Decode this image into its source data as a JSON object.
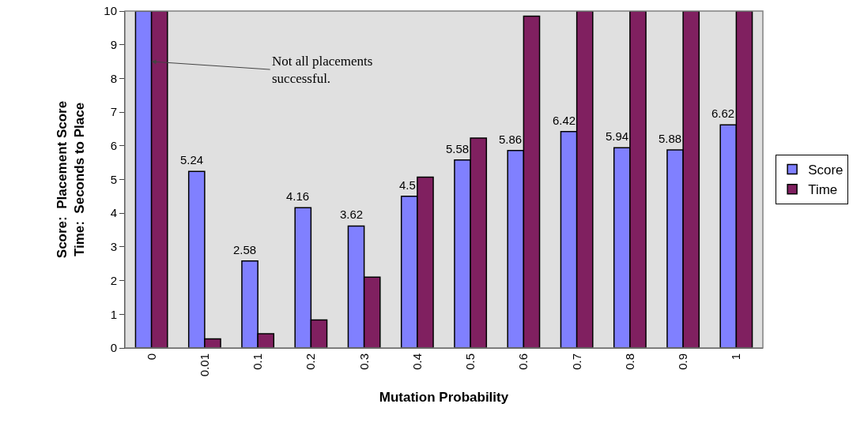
{
  "chart_data": {
    "type": "bar",
    "xlabel": "Mutation Probability",
    "ylabel": "Score:  Placement Score\nTime:  Seconds to Place",
    "categories": [
      "0",
      "0.01",
      "0.1",
      "0.2",
      "0.3",
      "0.4",
      "0.5",
      "0.6",
      "0.7",
      "0.8",
      "0.9",
      "1"
    ],
    "series": [
      {
        "name": "Score",
        "color": "#8080ff",
        "values": [
          10,
          5.24,
          2.58,
          4.16,
          3.62,
          4.5,
          5.58,
          5.86,
          6.42,
          5.94,
          5.88,
          6.62
        ],
        "value_labels": [
          null,
          "5.24",
          "2.58",
          "4.16",
          "3.62",
          "4.5",
          "5.58",
          "5.86",
          "6.42",
          "5.94",
          "5.88",
          "6.62"
        ]
      },
      {
        "name": "Time",
        "color": "#802060",
        "values": [
          10,
          0.27,
          0.42,
          0.83,
          2.1,
          5.07,
          6.23,
          9.85,
          10,
          10,
          10,
          10
        ]
      }
    ],
    "ylim": [
      0,
      10
    ],
    "yticks": [
      0,
      1,
      2,
      3,
      4,
      5,
      6,
      7,
      8,
      9,
      10
    ],
    "grid": false,
    "legend": "right",
    "annotations": [
      {
        "text": "Not all placements\nsuccessful.",
        "x": "0",
        "y": 8.5
      }
    ]
  }
}
